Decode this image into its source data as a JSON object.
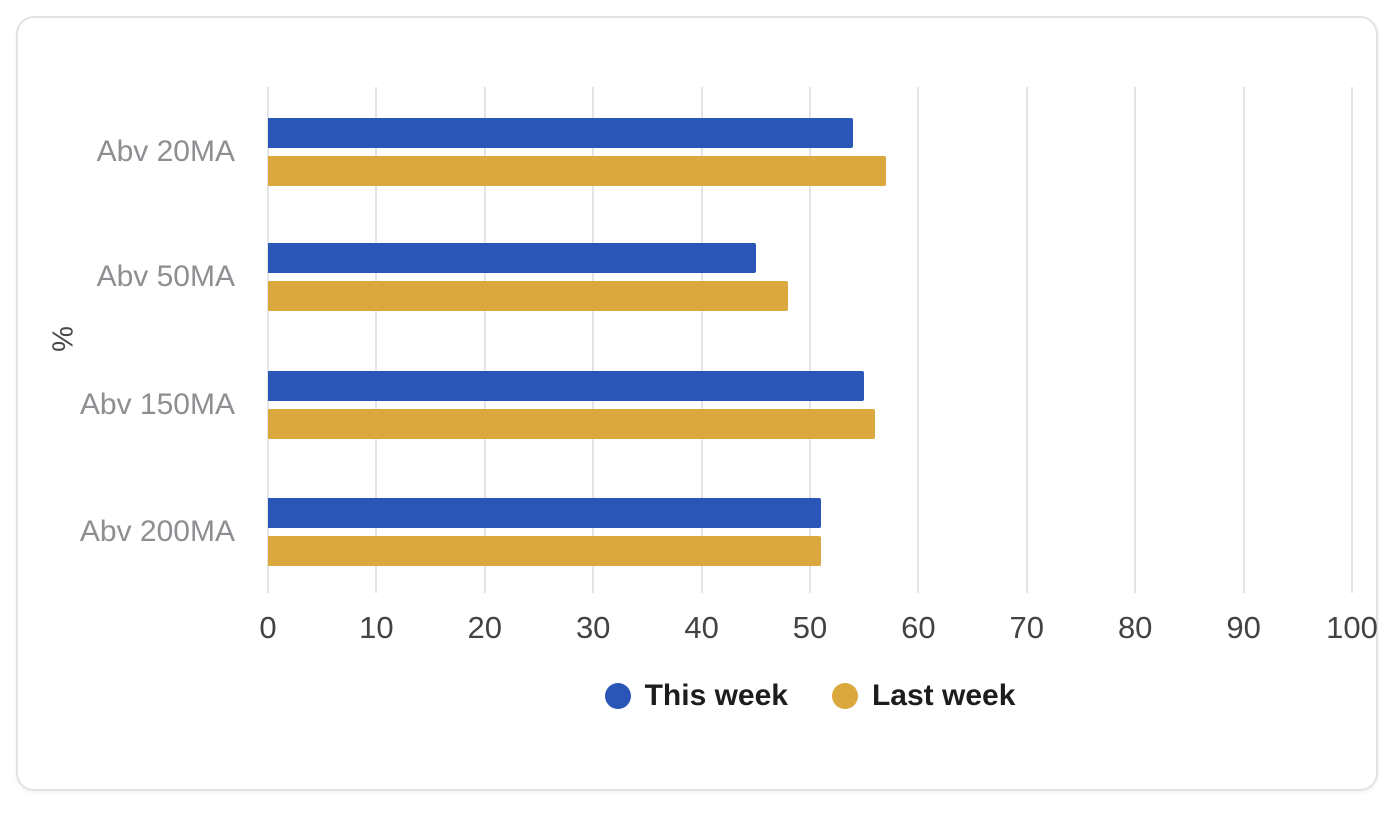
{
  "chart_data": {
    "type": "bar",
    "orientation": "horizontal",
    "title": "",
    "xlabel": "",
    "ylabel": "%",
    "categories": [
      "Abv 20MA",
      "Abv 50MA",
      "Abv 150MA",
      "Abv 200MA"
    ],
    "series": [
      {
        "name": "This week",
        "color": "#2a56b8",
        "values": [
          54,
          45,
          55,
          51
        ]
      },
      {
        "name": "Last week",
        "color": "#daa83c",
        "values": [
          57,
          48,
          56,
          51
        ]
      }
    ],
    "xlim": [
      0,
      100
    ],
    "xticks": [
      0,
      10,
      20,
      30,
      40,
      50,
      60,
      70,
      80,
      90,
      100
    ],
    "grid": "vertical",
    "legend_position": "bottom-center"
  },
  "colors": {
    "background": "#ffffff",
    "card_border": "#e2e2e5",
    "gridline": "#e4e4e6",
    "axis_text": "#434345",
    "category_text": "#8e8e93",
    "ylabel_text": "#48484a",
    "legend_text": "#1d1d1f",
    "series_this_week": "#2a56b8",
    "series_last_week": "#daa83c"
  }
}
